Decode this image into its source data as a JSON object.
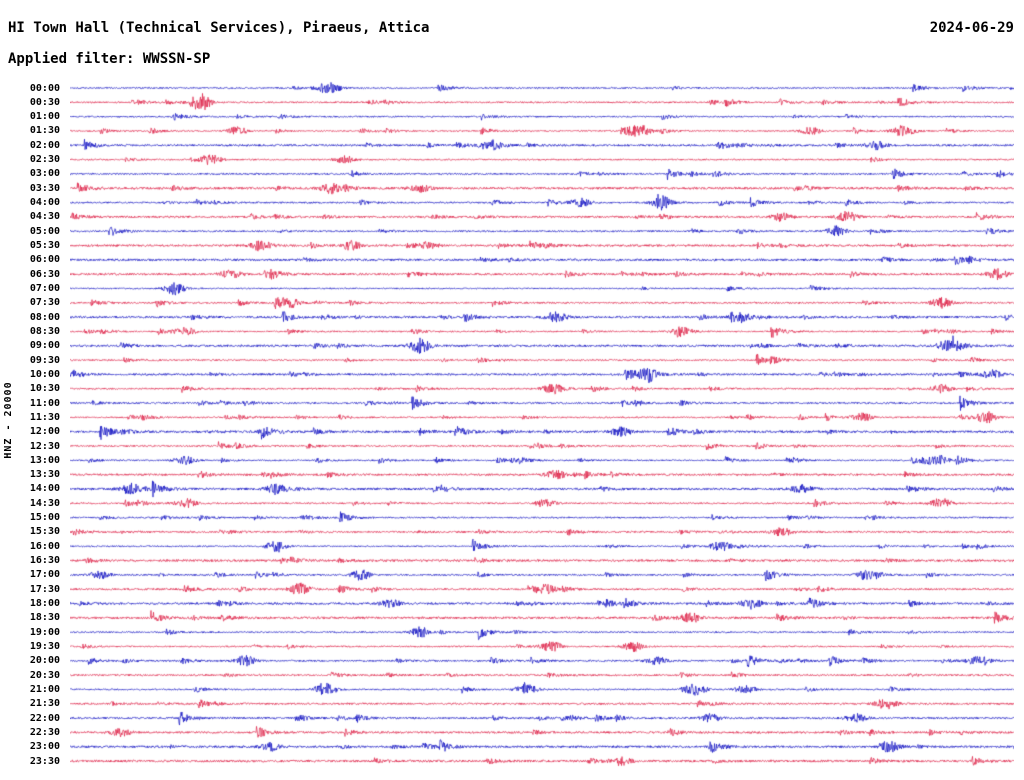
{
  "header": {
    "station_title": "HI Town Hall (Technical Services), Piraeus, Attica",
    "date": "2024-06-29",
    "filter_label": "Applied filter: WWSSN-SP"
  },
  "left_axis": {
    "channel_scale_label": "HNZ - 20000"
  },
  "chart_data": {
    "type": "line",
    "subtype": "helicorder-seismogram",
    "title": "HI Town Hall (Technical Services), Piraeus, Attica",
    "date": "2024-06-29",
    "filter": "WWSSN-SP",
    "channel": "HNZ",
    "amplitude_scale": 20000,
    "minutes_per_row": 30,
    "rows": 48,
    "background": "#FFFFFF",
    "legend_position": "none",
    "grid": false,
    "trace_colors": {
      "even_rows": "#0000BE",
      "odd_rows": "#DC143C"
    },
    "row_labels": [
      "00:00",
      "00:30",
      "01:00",
      "01:30",
      "02:00",
      "02:30",
      "03:00",
      "03:30",
      "04:00",
      "04:30",
      "05:00",
      "05:30",
      "06:00",
      "06:30",
      "07:00",
      "07:30",
      "08:00",
      "08:30",
      "09:00",
      "09:30",
      "10:00",
      "10:30",
      "11:00",
      "11:30",
      "12:00",
      "12:30",
      "13:00",
      "13:30",
      "14:00",
      "14:30",
      "15:00",
      "15:30",
      "16:00",
      "16:30",
      "17:00",
      "17:30",
      "18:00",
      "18:30",
      "19:00",
      "19:30",
      "20:00",
      "20:30",
      "21:00",
      "21:30",
      "22:00",
      "22:30",
      "23:00",
      "23:30"
    ],
    "events": [
      {
        "row": 0,
        "x": 0.276,
        "amp": 5
      },
      {
        "row": 1,
        "x": 0.138,
        "amp": 9
      },
      {
        "row": 3,
        "x": 0.177,
        "amp": 4
      },
      {
        "row": 3,
        "x": 0.6,
        "amp": 5
      },
      {
        "row": 3,
        "x": 0.785,
        "amp": 4
      },
      {
        "row": 3,
        "x": 0.88,
        "amp": 5
      },
      {
        "row": 4,
        "x": 0.446,
        "amp": 6
      },
      {
        "row": 4,
        "x": 0.854,
        "amp": 4
      },
      {
        "row": 5,
        "x": 0.149,
        "amp": 5
      },
      {
        "row": 5,
        "x": 0.292,
        "amp": 4
      },
      {
        "row": 7,
        "x": 0.276,
        "amp": 5
      },
      {
        "row": 7,
        "x": 0.371,
        "amp": 4
      },
      {
        "row": 8,
        "x": 0.626,
        "amp": 5
      },
      {
        "row": 8,
        "x": 0.541,
        "amp": 4
      },
      {
        "row": 9,
        "x": 0.754,
        "amp": 4
      },
      {
        "row": 9,
        "x": 0.823,
        "amp": 5
      },
      {
        "row": 10,
        "x": 0.812,
        "amp": 5
      },
      {
        "row": 11,
        "x": 0.2,
        "amp": 3
      },
      {
        "row": 11,
        "x": 0.3,
        "amp": 3
      },
      {
        "row": 11,
        "x": 0.38,
        "amp": 3
      },
      {
        "row": 13,
        "x": 0.17,
        "amp": 4
      },
      {
        "row": 13,
        "x": 0.982,
        "amp": 5
      },
      {
        "row": 14,
        "x": 0.111,
        "amp": 6
      },
      {
        "row": 15,
        "x": 0.233,
        "amp": 4
      },
      {
        "row": 15,
        "x": 0.923,
        "amp": 5
      },
      {
        "row": 16,
        "x": 0.515,
        "amp": 5
      },
      {
        "row": 16,
        "x": 0.711,
        "amp": 4
      },
      {
        "row": 17,
        "x": 0.122,
        "amp": 4
      },
      {
        "row": 17,
        "x": 0.648,
        "amp": 4
      },
      {
        "row": 18,
        "x": 0.371,
        "amp": 7
      },
      {
        "row": 18,
        "x": 0.929,
        "amp": 5
      },
      {
        "row": 20,
        "x": 0.61,
        "amp": 6
      },
      {
        "row": 20,
        "x": 0.977,
        "amp": 4
      },
      {
        "row": 21,
        "x": 0.51,
        "amp": 4
      },
      {
        "row": 21,
        "x": 0.923,
        "amp": 4
      },
      {
        "row": 23,
        "x": 0.839,
        "amp": 4
      },
      {
        "row": 23,
        "x": 0.971,
        "amp": 6
      },
      {
        "row": 24,
        "x": 0.584,
        "amp": 4
      },
      {
        "row": 26,
        "x": 0.122,
        "amp": 4
      },
      {
        "row": 26,
        "x": 0.913,
        "amp": 4
      },
      {
        "row": 27,
        "x": 0.515,
        "amp": 4
      },
      {
        "row": 28,
        "x": 0.064,
        "amp": 6
      },
      {
        "row": 28,
        "x": 0.218,
        "amp": 5
      },
      {
        "row": 28,
        "x": 0.775,
        "amp": 4
      },
      {
        "row": 29,
        "x": 0.122,
        "amp": 5
      },
      {
        "row": 29,
        "x": 0.504,
        "amp": 4
      },
      {
        "row": 29,
        "x": 0.923,
        "amp": 5
      },
      {
        "row": 31,
        "x": 0.754,
        "amp": 4
      },
      {
        "row": 32,
        "x": 0.218,
        "amp": 6
      },
      {
        "row": 32,
        "x": 0.69,
        "amp": 5
      },
      {
        "row": 34,
        "x": 0.032,
        "amp": 4
      },
      {
        "row": 34,
        "x": 0.308,
        "amp": 5
      },
      {
        "row": 34,
        "x": 0.844,
        "amp": 5
      },
      {
        "row": 35,
        "x": 0.244,
        "amp": 6
      },
      {
        "row": 35,
        "x": 0.504,
        "amp": 4
      },
      {
        "row": 36,
        "x": 0.34,
        "amp": 4
      },
      {
        "row": 36,
        "x": 0.722,
        "amp": 5
      },
      {
        "row": 37,
        "x": 0.658,
        "amp": 5
      },
      {
        "row": 38,
        "x": 0.371,
        "amp": 5
      },
      {
        "row": 39,
        "x": 0.51,
        "amp": 5
      },
      {
        "row": 39,
        "x": 0.594,
        "amp": 4
      },
      {
        "row": 40,
        "x": 0.186,
        "amp": 5
      },
      {
        "row": 40,
        "x": 0.621,
        "amp": 4
      },
      {
        "row": 40,
        "x": 0.961,
        "amp": 4
      },
      {
        "row": 42,
        "x": 0.271,
        "amp": 7
      },
      {
        "row": 42,
        "x": 0.483,
        "amp": 5
      },
      {
        "row": 42,
        "x": 0.663,
        "amp": 5
      },
      {
        "row": 42,
        "x": 0.716,
        "amp": 4
      },
      {
        "row": 43,
        "x": 0.865,
        "amp": 5
      },
      {
        "row": 44,
        "x": 0.679,
        "amp": 4
      },
      {
        "row": 44,
        "x": 0.833,
        "amp": 4
      },
      {
        "row": 45,
        "x": 0.053,
        "amp": 4
      },
      {
        "row": 46,
        "x": 0.212,
        "amp": 4
      },
      {
        "row": 46,
        "x": 0.87,
        "amp": 4
      },
      {
        "row": 47,
        "x": 0.584,
        "amp": 4
      }
    ]
  }
}
